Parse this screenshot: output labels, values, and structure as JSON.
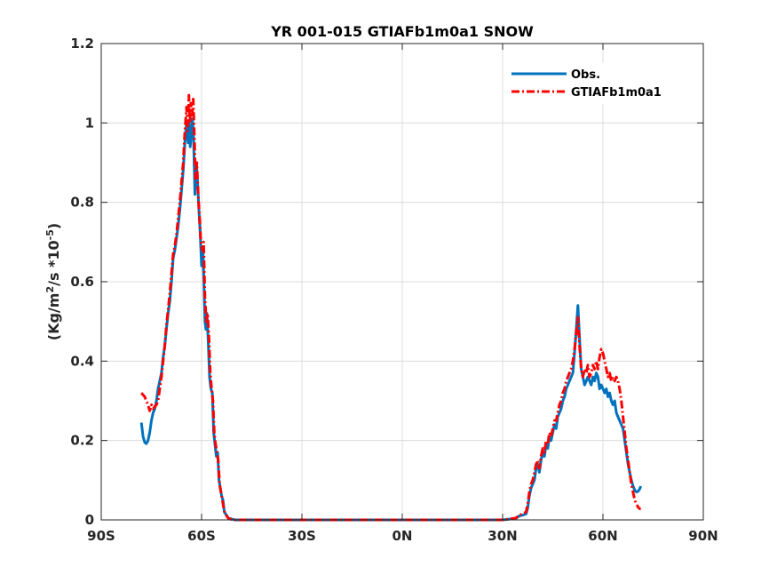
{
  "chart_data": {
    "type": "line",
    "title": "YR 001-015 GTIAFb1m0a1 SNOW",
    "ylabel_prefix": "(Kg/m",
    "ylabel_sup1": "2",
    "ylabel_mid": "/s *10",
    "ylabel_sup2": "-5",
    "ylabel_suffix": ")",
    "xlim": [
      -90,
      90
    ],
    "ylim": [
      0,
      1.2
    ],
    "xticks": [
      -90,
      -60,
      -30,
      0,
      30,
      60,
      90
    ],
    "xtick_labels": [
      "90S",
      "60S",
      "30S",
      "0N",
      "30N",
      "60N",
      "90N"
    ],
    "yticks": [
      0,
      0.2,
      0.4,
      0.6,
      0.8,
      1,
      1.2
    ],
    "ytick_labels": [
      "0",
      "0.2",
      "0.4",
      "0.6",
      "0.8",
      "1",
      "1.2"
    ],
    "grid": true,
    "legend_position": "top-right",
    "series": [
      {
        "name": "Obs.",
        "color": "#0072bd",
        "style": "solid",
        "points": [
          [
            -78,
            0.245
          ],
          [
            -77.5,
            0.21
          ],
          [
            -77,
            0.195
          ],
          [
            -76.5,
            0.192
          ],
          [
            -76,
            0.2
          ],
          [
            -75.5,
            0.22
          ],
          [
            -75,
            0.25
          ],
          [
            -74.5,
            0.27
          ],
          [
            -74,
            0.28
          ],
          [
            -73.5,
            0.3
          ],
          [
            -73,
            0.33
          ],
          [
            -72.5,
            0.35
          ],
          [
            -72,
            0.37
          ],
          [
            -71.5,
            0.41
          ],
          [
            -71,
            0.44
          ],
          [
            -70.5,
            0.48
          ],
          [
            -70,
            0.52
          ],
          [
            -69.5,
            0.55
          ],
          [
            -69,
            0.6
          ],
          [
            -68.5,
            0.66
          ],
          [
            -68,
            0.68
          ],
          [
            -67.5,
            0.71
          ],
          [
            -67,
            0.74
          ],
          [
            -66.5,
            0.78
          ],
          [
            -66,
            0.83
          ],
          [
            -65.5,
            0.88
          ],
          [
            -65,
            0.95
          ],
          [
            -64.5,
            1.0
          ],
          [
            -64,
            0.95
          ],
          [
            -63.7,
            1.0
          ],
          [
            -63.4,
            0.94
          ],
          [
            -63,
            0.98
          ],
          [
            -62.7,
            1.01
          ],
          [
            -62.4,
            0.96
          ],
          [
            -62,
            0.82
          ],
          [
            -61.6,
            0.9
          ],
          [
            -61.2,
            0.85
          ],
          [
            -60.8,
            0.78
          ],
          [
            -60.4,
            0.72
          ],
          [
            -60,
            0.64
          ],
          [
            -59.6,
            0.68
          ],
          [
            -59.3,
            0.6
          ],
          [
            -59,
            0.5
          ],
          [
            -58.7,
            0.48
          ],
          [
            -58.4,
            0.52
          ],
          [
            -58,
            0.45
          ],
          [
            -57.6,
            0.36
          ],
          [
            -57.2,
            0.33
          ],
          [
            -56.8,
            0.32
          ],
          [
            -56.4,
            0.22
          ],
          [
            -56,
            0.19
          ],
          [
            -55.6,
            0.16
          ],
          [
            -55.2,
            0.17
          ],
          [
            -54.8,
            0.1
          ],
          [
            -54.4,
            0.08
          ],
          [
            -54,
            0.06
          ],
          [
            -53.6,
            0.05
          ],
          [
            -53.2,
            0.02
          ],
          [
            -52.8,
            0.015
          ],
          [
            -52.4,
            0.01
          ],
          [
            -52,
            0.005
          ],
          [
            -51,
            0.002
          ],
          [
            -50,
            0.0
          ],
          [
            -40,
            0.0
          ],
          [
            -20,
            0.0
          ],
          [
            0,
            0.0
          ],
          [
            20,
            0.0
          ],
          [
            30,
            0.0
          ],
          [
            32,
            0.002
          ],
          [
            34,
            0.004
          ],
          [
            35,
            0.01
          ],
          [
            36,
            0.012
          ],
          [
            37,
            0.015
          ],
          [
            37.5,
            0.03
          ],
          [
            38,
            0.06
          ],
          [
            38.5,
            0.08
          ],
          [
            39,
            0.09
          ],
          [
            39.5,
            0.1
          ],
          [
            40,
            0.13
          ],
          [
            40.5,
            0.14
          ],
          [
            41,
            0.12
          ],
          [
            41.5,
            0.15
          ],
          [
            42,
            0.17
          ],
          [
            42.5,
            0.16
          ],
          [
            43,
            0.19
          ],
          [
            43.5,
            0.18
          ],
          [
            44,
            0.21
          ],
          [
            44.5,
            0.2
          ],
          [
            45,
            0.22
          ],
          [
            45.5,
            0.24
          ],
          [
            46,
            0.23
          ],
          [
            46.5,
            0.26
          ],
          [
            47,
            0.27
          ],
          [
            47.5,
            0.28
          ],
          [
            48,
            0.3
          ],
          [
            48.5,
            0.31
          ],
          [
            49,
            0.33
          ],
          [
            49.5,
            0.34
          ],
          [
            50,
            0.35
          ],
          [
            50.5,
            0.36
          ],
          [
            51,
            0.37
          ],
          [
            51.5,
            0.42
          ],
          [
            52,
            0.48
          ],
          [
            52.5,
            0.54
          ],
          [
            53,
            0.46
          ],
          [
            53.5,
            0.38
          ],
          [
            54,
            0.36
          ],
          [
            54.5,
            0.34
          ],
          [
            55,
            0.35
          ],
          [
            55.5,
            0.36
          ],
          [
            56,
            0.35
          ],
          [
            56.5,
            0.34
          ],
          [
            57,
            0.36
          ],
          [
            57.5,
            0.35
          ],
          [
            58,
            0.37
          ],
          [
            58.5,
            0.36
          ],
          [
            59,
            0.33
          ],
          [
            59.5,
            0.34
          ],
          [
            60,
            0.33
          ],
          [
            60.5,
            0.32
          ],
          [
            61,
            0.33
          ],
          [
            61.5,
            0.31
          ],
          [
            62,
            0.32
          ],
          [
            62.5,
            0.3
          ],
          [
            63,
            0.29
          ],
          [
            63.5,
            0.3
          ],
          [
            64,
            0.27
          ],
          [
            64.5,
            0.26
          ],
          [
            65,
            0.25
          ],
          [
            65.5,
            0.24
          ],
          [
            66,
            0.23
          ],
          [
            66.5,
            0.2
          ],
          [
            67,
            0.17
          ],
          [
            67.5,
            0.14
          ],
          [
            68,
            0.12
          ],
          [
            68.5,
            0.1
          ],
          [
            69,
            0.085
          ],
          [
            69.5,
            0.075
          ],
          [
            70,
            0.07
          ],
          [
            70.5,
            0.072
          ],
          [
            71,
            0.078
          ],
          [
            71.3,
            0.085
          ]
        ]
      },
      {
        "name": "GTIAFb1m0a1",
        "color": "#ff0000",
        "style": "dashdot",
        "points": [
          [
            -78,
            0.32
          ],
          [
            -77.5,
            0.315
          ],
          [
            -77,
            0.31
          ],
          [
            -76.5,
            0.3
          ],
          [
            -76,
            0.29
          ],
          [
            -75.5,
            0.275
          ],
          [
            -75,
            0.29
          ],
          [
            -74.5,
            0.28
          ],
          [
            -74,
            0.285
          ],
          [
            -73.5,
            0.29
          ],
          [
            -73,
            0.3
          ],
          [
            -72.5,
            0.33
          ],
          [
            -72,
            0.36
          ],
          [
            -71.5,
            0.4
          ],
          [
            -71,
            0.44
          ],
          [
            -70.5,
            0.49
          ],
          [
            -70,
            0.53
          ],
          [
            -69.5,
            0.57
          ],
          [
            -69,
            0.62
          ],
          [
            -68.5,
            0.67
          ],
          [
            -68,
            0.69
          ],
          [
            -67.5,
            0.72
          ],
          [
            -67,
            0.76
          ],
          [
            -66.5,
            0.8
          ],
          [
            -66,
            0.85
          ],
          [
            -65.5,
            0.9
          ],
          [
            -65,
            0.98
          ],
          [
            -64.5,
            1.04
          ],
          [
            -64.2,
            0.98
          ],
          [
            -63.8,
            1.07
          ],
          [
            -63.5,
            1.0
          ],
          [
            -63.2,
            1.05
          ],
          [
            -62.8,
            1.02
          ],
          [
            -62.5,
            1.06
          ],
          [
            -62.2,
            0.98
          ],
          [
            -61.8,
            0.86
          ],
          [
            -61.4,
            0.9
          ],
          [
            -61,
            0.82
          ],
          [
            -60.6,
            0.76
          ],
          [
            -60.2,
            0.7
          ],
          [
            -59.8,
            0.68
          ],
          [
            -59.4,
            0.7
          ],
          [
            -59,
            0.56
          ],
          [
            -58.6,
            0.5
          ],
          [
            -58.2,
            0.52
          ],
          [
            -57.8,
            0.46
          ],
          [
            -57.4,
            0.37
          ],
          [
            -57,
            0.33
          ],
          [
            -56.6,
            0.3
          ],
          [
            -56.2,
            0.22
          ],
          [
            -55.8,
            0.19
          ],
          [
            -55.4,
            0.17
          ],
          [
            -55,
            0.15
          ],
          [
            -54.6,
            0.09
          ],
          [
            -54.2,
            0.07
          ],
          [
            -53.8,
            0.05
          ],
          [
            -53.4,
            0.03
          ],
          [
            -53,
            0.015
          ],
          [
            -52.5,
            0.01
          ],
          [
            -52,
            0.004
          ],
          [
            -51,
            0.001
          ],
          [
            -50,
            0.0
          ],
          [
            -40,
            0.0
          ],
          [
            -20,
            0.0
          ],
          [
            0,
            0.0
          ],
          [
            20,
            0.0
          ],
          [
            30,
            0.0
          ],
          [
            32,
            0.002
          ],
          [
            34,
            0.005
          ],
          [
            35,
            0.012
          ],
          [
            36,
            0.015
          ],
          [
            37,
            0.02
          ],
          [
            37.5,
            0.04
          ],
          [
            38,
            0.07
          ],
          [
            38.5,
            0.09
          ],
          [
            39,
            0.1
          ],
          [
            39.5,
            0.12
          ],
          [
            40,
            0.14
          ],
          [
            40.5,
            0.15
          ],
          [
            41,
            0.13
          ],
          [
            41.5,
            0.16
          ],
          [
            42,
            0.18
          ],
          [
            42.5,
            0.17
          ],
          [
            43,
            0.2
          ],
          [
            43.5,
            0.19
          ],
          [
            44,
            0.22
          ],
          [
            44.5,
            0.21
          ],
          [
            45,
            0.23
          ],
          [
            45.5,
            0.25
          ],
          [
            46,
            0.25
          ],
          [
            46.5,
            0.27
          ],
          [
            47,
            0.29
          ],
          [
            47.5,
            0.3
          ],
          [
            48,
            0.32
          ],
          [
            48.5,
            0.33
          ],
          [
            49,
            0.35
          ],
          [
            49.5,
            0.36
          ],
          [
            50,
            0.37
          ],
          [
            50.5,
            0.38
          ],
          [
            51,
            0.4
          ],
          [
            51.5,
            0.43
          ],
          [
            52,
            0.47
          ],
          [
            52.5,
            0.51
          ],
          [
            53,
            0.44
          ],
          [
            53.5,
            0.38
          ],
          [
            54,
            0.36
          ],
          [
            54.5,
            0.38
          ],
          [
            55,
            0.37
          ],
          [
            55.5,
            0.39
          ],
          [
            56,
            0.36
          ],
          [
            56.5,
            0.37
          ],
          [
            57,
            0.39
          ],
          [
            57.5,
            0.38
          ],
          [
            58,
            0.4
          ],
          [
            58.5,
            0.38
          ],
          [
            59,
            0.41
          ],
          [
            59.5,
            0.43
          ],
          [
            60,
            0.42
          ],
          [
            60.5,
            0.4
          ],
          [
            61,
            0.38
          ],
          [
            61.5,
            0.36
          ],
          [
            62,
            0.37
          ],
          [
            62.5,
            0.35
          ],
          [
            63,
            0.36
          ],
          [
            63.5,
            0.35
          ],
          [
            64,
            0.36
          ],
          [
            64.5,
            0.35
          ],
          [
            65,
            0.33
          ],
          [
            65.5,
            0.3
          ],
          [
            66,
            0.26
          ],
          [
            66.5,
            0.22
          ],
          [
            67,
            0.18
          ],
          [
            67.5,
            0.15
          ],
          [
            68,
            0.12
          ],
          [
            68.5,
            0.09
          ],
          [
            69,
            0.07
          ],
          [
            69.5,
            0.05
          ],
          [
            70,
            0.04
          ],
          [
            70.5,
            0.032
          ],
          [
            71,
            0.028
          ],
          [
            71.3,
            0.028
          ]
        ]
      }
    ]
  }
}
